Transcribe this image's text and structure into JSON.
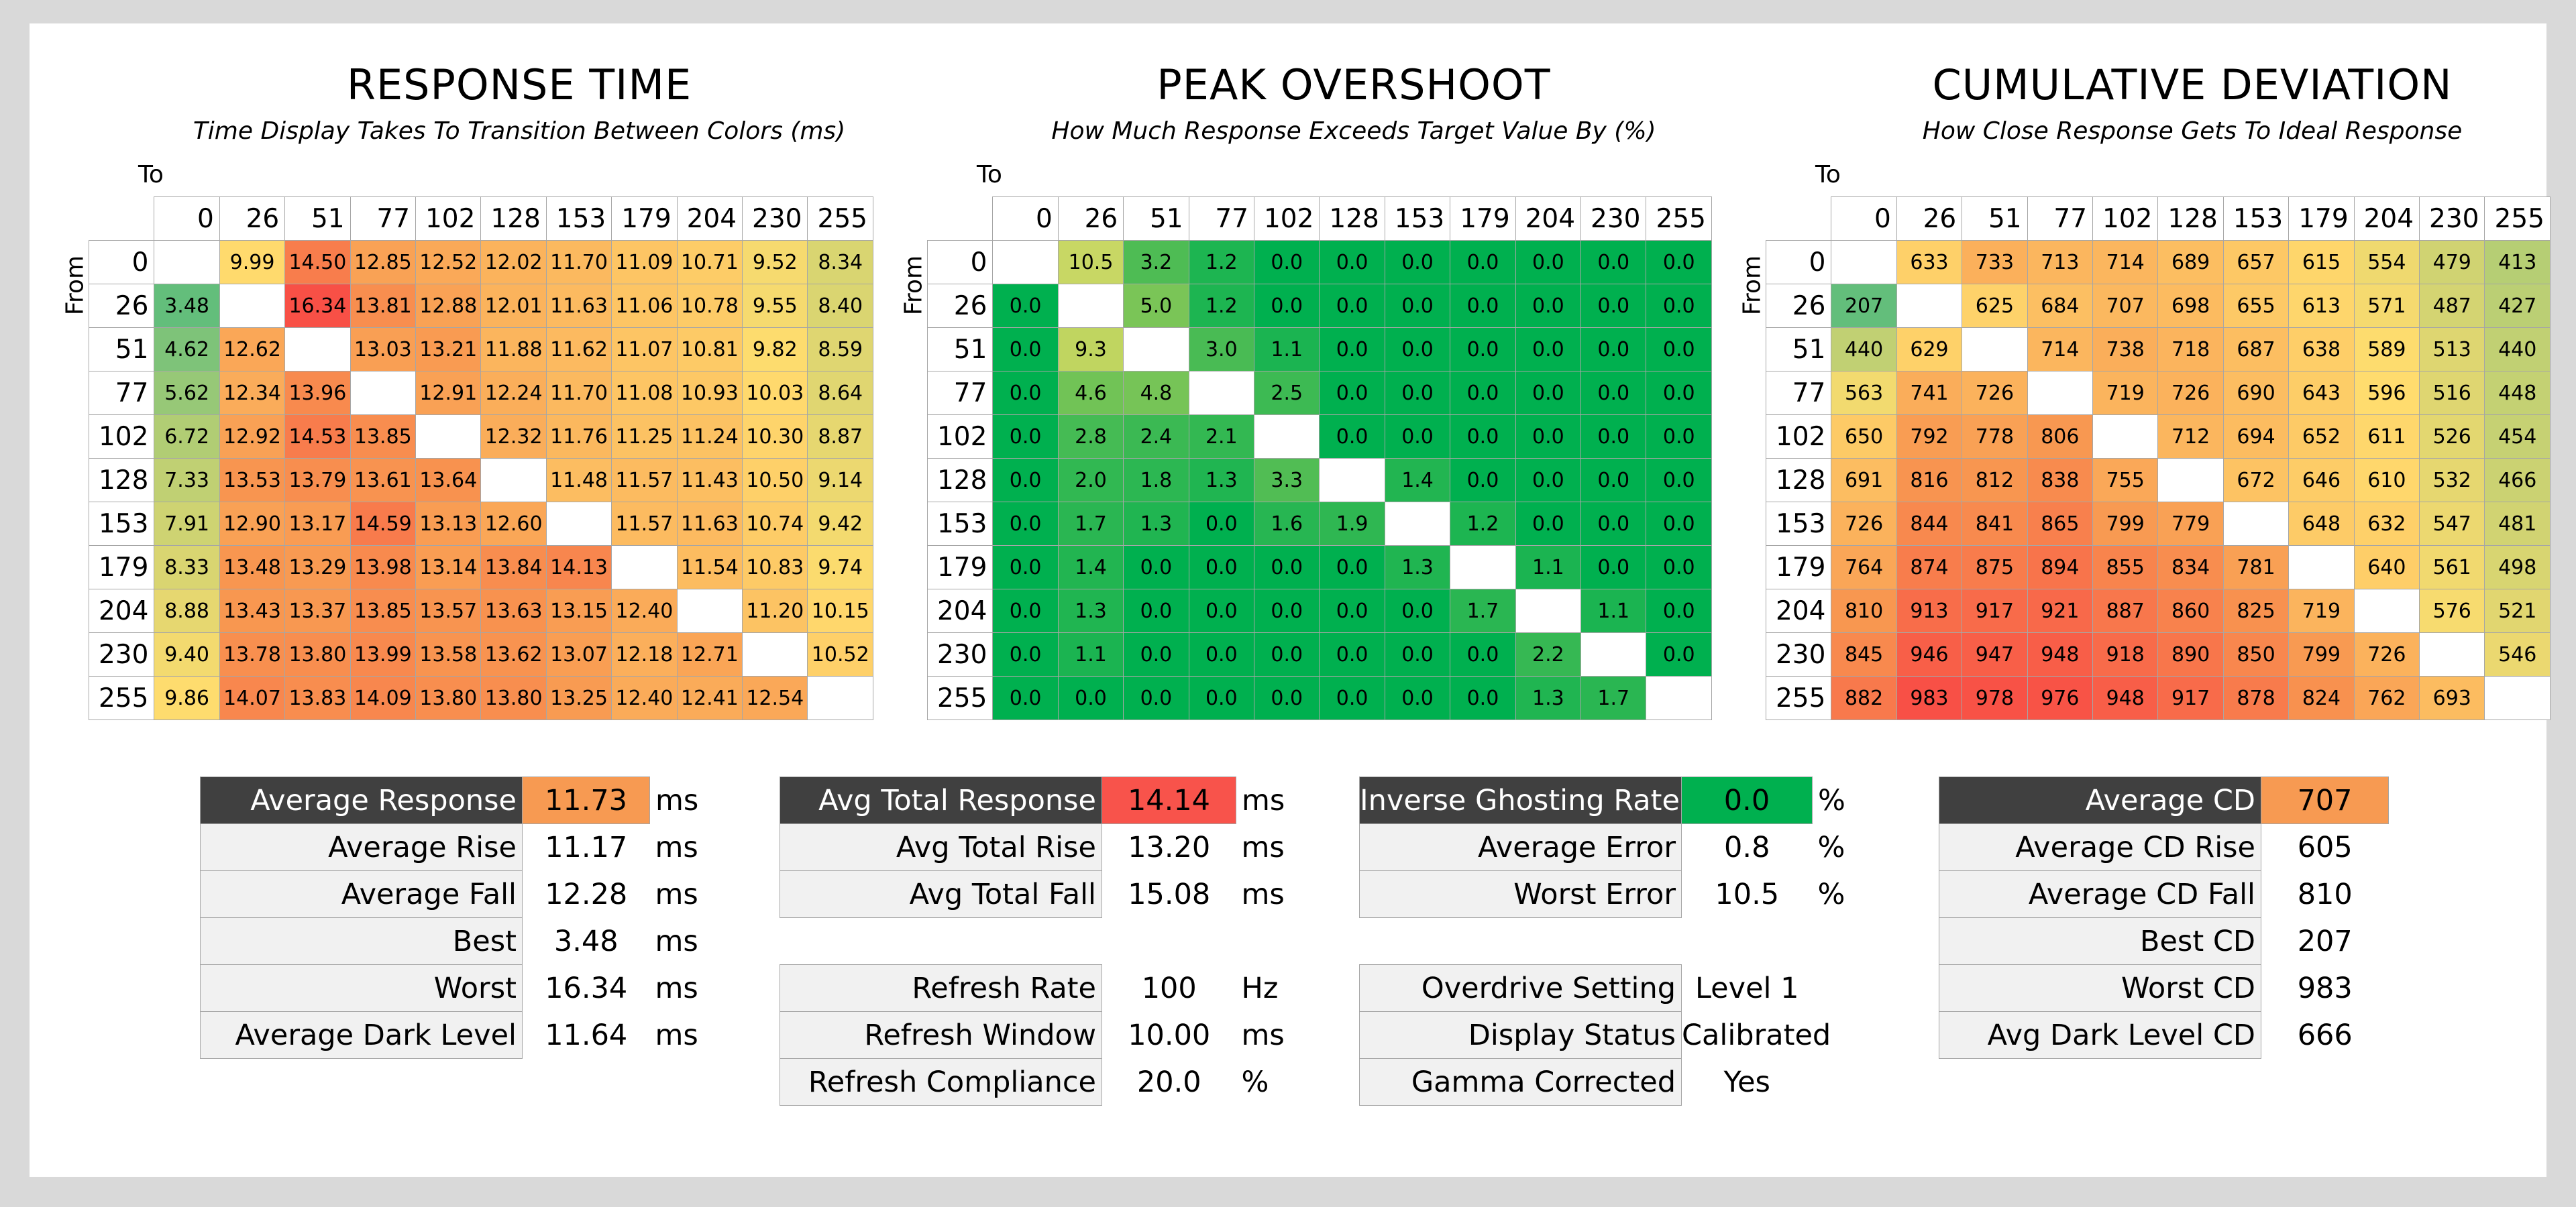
{
  "cols": [
    "0",
    "26",
    "51",
    "77",
    "102",
    "128",
    "153",
    "179",
    "204",
    "230",
    "255"
  ],
  "to_label": "To",
  "from_label": "From",
  "chart_data": [
    {
      "type": "heatmap",
      "title": "RESPONSE TIME",
      "subtitle": "Time Display Takes To Transition Between Colors (ms)",
      "xlabel": "To",
      "ylabel": "From",
      "x": [
        0,
        26,
        51,
        77,
        102,
        128,
        153,
        179,
        204,
        230,
        255
      ],
      "y": [
        0,
        26,
        51,
        77,
        102,
        128,
        153,
        179,
        204,
        230,
        255
      ],
      "values": [
        [
          "",
          "9.99",
          "14.50",
          "12.85",
          "12.52",
          "12.02",
          "11.70",
          "11.09",
          "10.71",
          "9.52",
          "8.34"
        ],
        [
          "3.48",
          "",
          "16.34",
          "13.81",
          "12.88",
          "12.01",
          "11.63",
          "11.06",
          "10.78",
          "9.55",
          "8.40"
        ],
        [
          "4.62",
          "12.62",
          "",
          "13.03",
          "13.21",
          "11.88",
          "11.62",
          "11.07",
          "10.81",
          "9.82",
          "8.59"
        ],
        [
          "5.62",
          "12.34",
          "13.96",
          "",
          "12.91",
          "12.24",
          "11.70",
          "11.08",
          "10.93",
          "10.03",
          "8.64"
        ],
        [
          "6.72",
          "12.92",
          "14.53",
          "13.85",
          "",
          "12.32",
          "11.76",
          "11.25",
          "11.24",
          "10.30",
          "8.87"
        ],
        [
          "7.33",
          "13.53",
          "13.79",
          "13.61",
          "13.64",
          "",
          "11.48",
          "11.57",
          "11.43",
          "10.50",
          "9.14"
        ],
        [
          "7.91",
          "12.90",
          "13.17",
          "14.59",
          "13.13",
          "12.60",
          "",
          "11.57",
          "11.63",
          "10.74",
          "9.42"
        ],
        [
          "8.33",
          "13.48",
          "13.29",
          "13.98",
          "13.14",
          "13.84",
          "14.13",
          "",
          "11.54",
          "10.83",
          "9.74"
        ],
        [
          "8.88",
          "13.43",
          "13.37",
          "13.85",
          "13.57",
          "13.63",
          "13.15",
          "12.40",
          "",
          "11.20",
          "10.15"
        ],
        [
          "9.40",
          "13.78",
          "13.80",
          "13.99",
          "13.58",
          "13.62",
          "13.07",
          "12.18",
          "12.71",
          "",
          "10.52"
        ],
        [
          "9.86",
          "14.07",
          "13.83",
          "14.09",
          "13.80",
          "13.80",
          "13.25",
          "12.40",
          "12.41",
          "12.54",
          ""
        ]
      ]
    },
    {
      "type": "heatmap",
      "title": "PEAK OVERSHOOT",
      "subtitle": "How Much Response Exceeds Target Value By (%)",
      "xlabel": "To",
      "ylabel": "From",
      "x": [
        0,
        26,
        51,
        77,
        102,
        128,
        153,
        179,
        204,
        230,
        255
      ],
      "y": [
        0,
        26,
        51,
        77,
        102,
        128,
        153,
        179,
        204,
        230,
        255
      ],
      "values": [
        [
          "",
          "10.5",
          "3.2",
          "1.2",
          "0.0",
          "0.0",
          "0.0",
          "0.0",
          "0.0",
          "0.0",
          "0.0"
        ],
        [
          "0.0",
          "",
          "5.0",
          "1.2",
          "0.0",
          "0.0",
          "0.0",
          "0.0",
          "0.0",
          "0.0",
          "0.0"
        ],
        [
          "0.0",
          "9.3",
          "",
          "3.0",
          "1.1",
          "0.0",
          "0.0",
          "0.0",
          "0.0",
          "0.0",
          "0.0"
        ],
        [
          "0.0",
          "4.6",
          "4.8",
          "",
          "2.5",
          "0.0",
          "0.0",
          "0.0",
          "0.0",
          "0.0",
          "0.0"
        ],
        [
          "0.0",
          "2.8",
          "2.4",
          "2.1",
          "",
          "0.0",
          "0.0",
          "0.0",
          "0.0",
          "0.0",
          "0.0"
        ],
        [
          "0.0",
          "2.0",
          "1.8",
          "1.3",
          "3.3",
          "",
          "1.4",
          "0.0",
          "0.0",
          "0.0",
          "0.0"
        ],
        [
          "0.0",
          "1.7",
          "1.3",
          "0.0",
          "1.6",
          "1.9",
          "",
          "1.2",
          "0.0",
          "0.0",
          "0.0"
        ],
        [
          "0.0",
          "1.4",
          "0.0",
          "0.0",
          "0.0",
          "0.0",
          "1.3",
          "",
          "1.1",
          "0.0",
          "0.0"
        ],
        [
          "0.0",
          "1.3",
          "0.0",
          "0.0",
          "0.0",
          "0.0",
          "0.0",
          "1.7",
          "",
          "1.1",
          "0.0"
        ],
        [
          "0.0",
          "1.1",
          "0.0",
          "0.0",
          "0.0",
          "0.0",
          "0.0",
          "0.0",
          "2.2",
          "",
          "0.0"
        ],
        [
          "0.0",
          "0.0",
          "0.0",
          "0.0",
          "0.0",
          "0.0",
          "0.0",
          "0.0",
          "1.3",
          "1.7",
          ""
        ]
      ]
    },
    {
      "type": "heatmap",
      "title": "CUMULATIVE DEVIATION",
      "subtitle": "How Close Response Gets To Ideal Response",
      "xlabel": "To",
      "ylabel": "From",
      "x": [
        0,
        26,
        51,
        77,
        102,
        128,
        153,
        179,
        204,
        230,
        255
      ],
      "y": [
        0,
        26,
        51,
        77,
        102,
        128,
        153,
        179,
        204,
        230,
        255
      ],
      "values": [
        [
          "",
          "633",
          "733",
          "713",
          "714",
          "689",
          "657",
          "615",
          "554",
          "479",
          "413"
        ],
        [
          "207",
          "",
          "625",
          "684",
          "707",
          "698",
          "655",
          "613",
          "571",
          "487",
          "427"
        ],
        [
          "440",
          "629",
          "",
          "714",
          "738",
          "718",
          "687",
          "638",
          "589",
          "513",
          "440"
        ],
        [
          "563",
          "741",
          "726",
          "",
          "719",
          "726",
          "690",
          "643",
          "596",
          "516",
          "448"
        ],
        [
          "650",
          "792",
          "778",
          "806",
          "",
          "712",
          "694",
          "652",
          "611",
          "526",
          "454"
        ],
        [
          "691",
          "816",
          "812",
          "838",
          "755",
          "",
          "672",
          "646",
          "610",
          "532",
          "466"
        ],
        [
          "726",
          "844",
          "841",
          "865",
          "799",
          "779",
          "",
          "648",
          "632",
          "547",
          "481"
        ],
        [
          "764",
          "874",
          "875",
          "894",
          "855",
          "834",
          "781",
          "",
          "640",
          "561",
          "498"
        ],
        [
          "810",
          "913",
          "917",
          "921",
          "887",
          "860",
          "825",
          "719",
          "",
          "576",
          "521"
        ],
        [
          "845",
          "946",
          "947",
          "948",
          "918",
          "890",
          "850",
          "799",
          "726",
          "",
          "546"
        ],
        [
          "882",
          "983",
          "978",
          "976",
          "948",
          "917",
          "878",
          "824",
          "762",
          "693",
          ""
        ]
      ]
    }
  ],
  "summary": {
    "response": [
      {
        "label": "Average Response",
        "value": "11.73",
        "unit": "ms",
        "dark": true,
        "color": "#f79a52"
      },
      {
        "label": "Average Rise",
        "value": "11.17",
        "unit": "ms"
      },
      {
        "label": "Average Fall",
        "value": "12.28",
        "unit": "ms"
      },
      {
        "label": "Best",
        "value": "3.48",
        "unit": "ms"
      },
      {
        "label": "Worst",
        "value": "16.34",
        "unit": "ms"
      },
      {
        "label": "Average Dark Level",
        "value": "11.64",
        "unit": "ms"
      }
    ],
    "total": [
      {
        "label": "Avg Total Response",
        "value": "14.14",
        "unit": "ms",
        "dark": true,
        "color": "#f8534b"
      },
      {
        "label": "Avg Total Rise",
        "value": "13.20",
        "unit": "ms"
      },
      {
        "label": "Avg Total Fall",
        "value": "15.08",
        "unit": "ms"
      },
      {
        "gap": true
      },
      {
        "label": "Refresh Rate",
        "value": "100",
        "unit": "Hz"
      },
      {
        "label": "Refresh Window",
        "value": "10.00",
        "unit": "ms"
      },
      {
        "label": "Refresh Compliance",
        "value": "20.0",
        "unit": "%"
      }
    ],
    "overshoot": [
      {
        "label": "Inverse Ghosting Rate",
        "value": "0.0",
        "unit": "%",
        "dark": true,
        "color": "#00b04f"
      },
      {
        "label": "Average Error",
        "value": "0.8",
        "unit": "%"
      },
      {
        "label": "Worst Error",
        "value": "10.5",
        "unit": "%"
      },
      {
        "gap": true
      },
      {
        "label": "Overdrive Setting",
        "value": "Level 1",
        "unit": ""
      },
      {
        "label": "Display Status",
        "value": "Calibrated",
        "unit": ""
      },
      {
        "label": "Gamma Corrected",
        "value": "Yes",
        "unit": ""
      }
    ],
    "cd": [
      {
        "label": "Average CD",
        "value": "707",
        "unit": "",
        "dark": true,
        "color": "#f79a52"
      },
      {
        "label": "Average CD Rise",
        "value": "605",
        "unit": ""
      },
      {
        "label": "Average CD Fall",
        "value": "810",
        "unit": ""
      },
      {
        "label": "Best CD",
        "value": "207",
        "unit": ""
      },
      {
        "label": "Worst CD",
        "value": "983",
        "unit": ""
      },
      {
        "label": "Avg Dark Level CD",
        "value": "666",
        "unit": ""
      }
    ]
  }
}
